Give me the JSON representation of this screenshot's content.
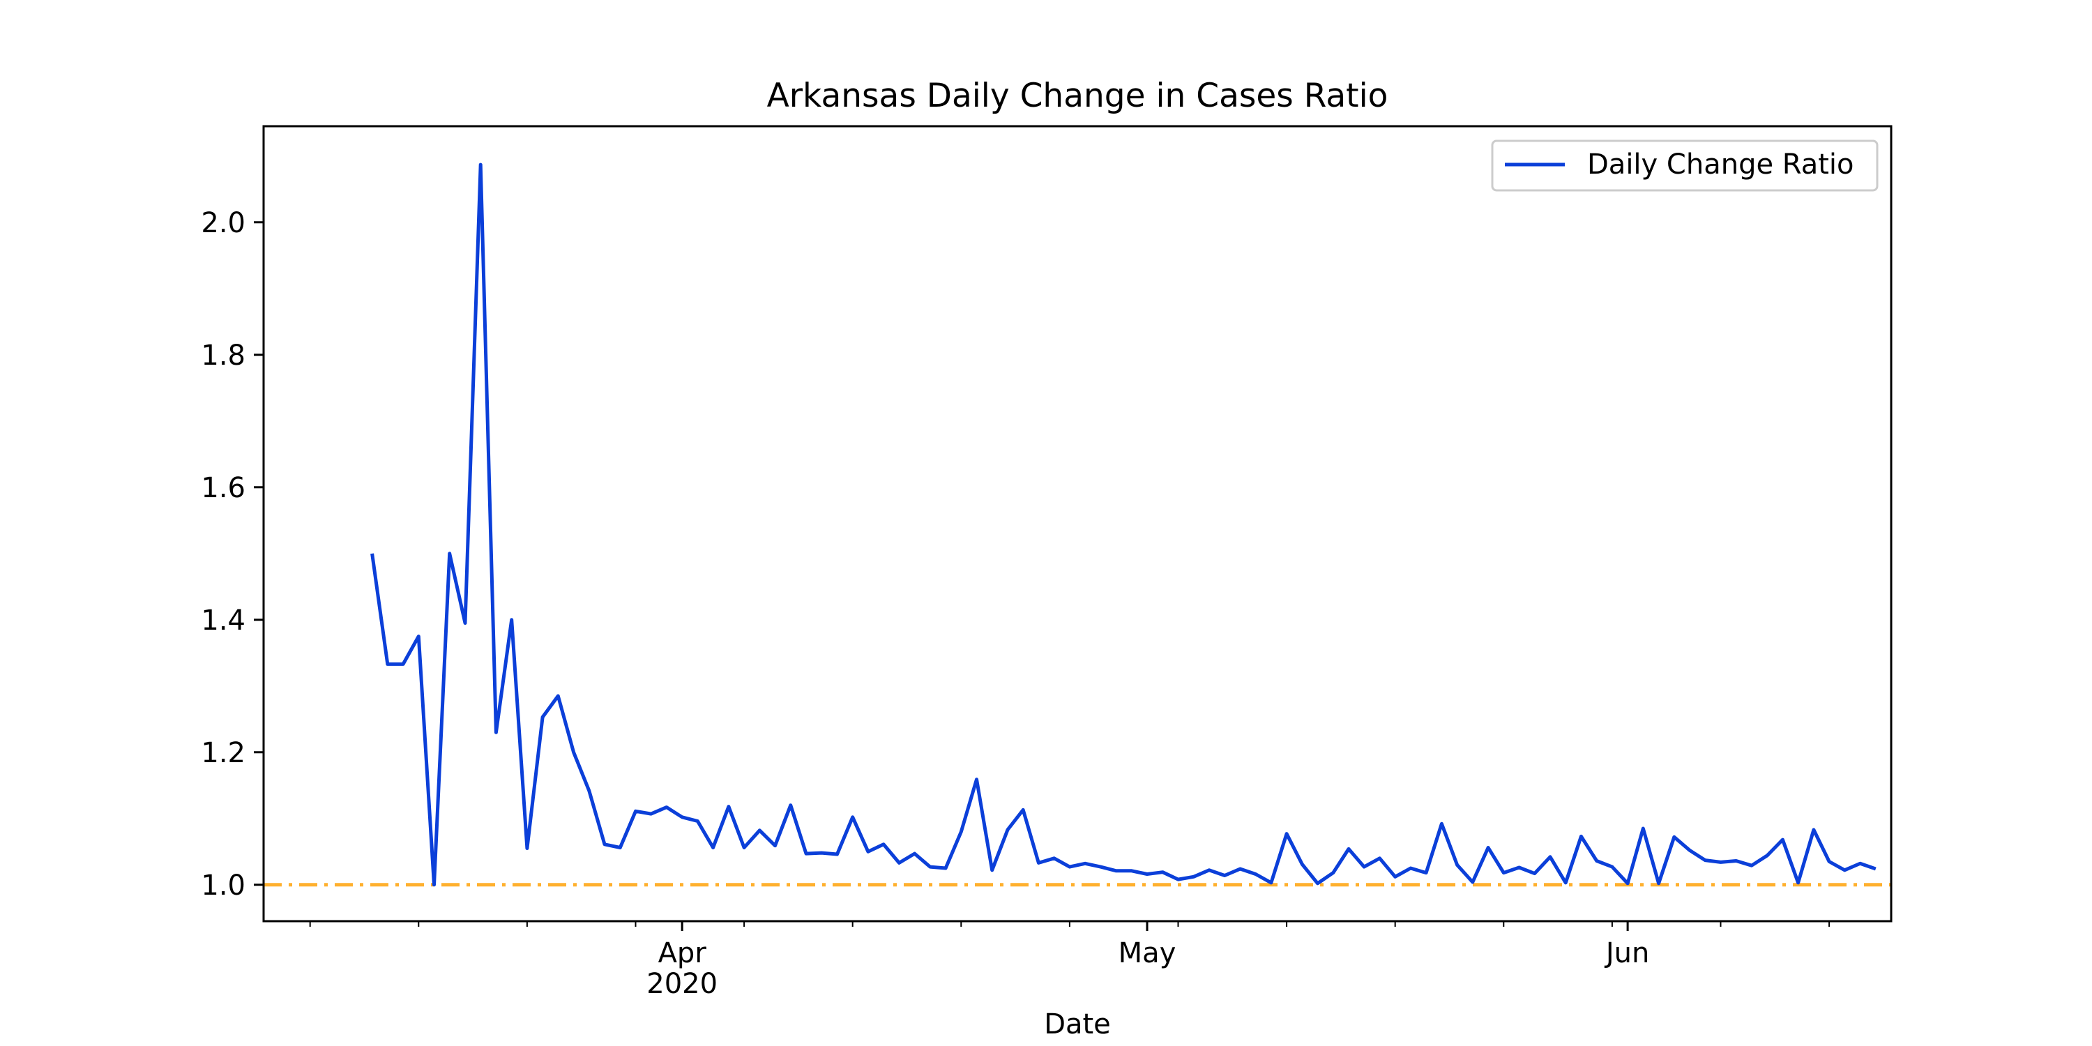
{
  "chart_data": {
    "type": "line",
    "title": "Arkansas Daily Change in Cases Ratio",
    "xlabel": "Date",
    "ylabel": "",
    "x_start": "2020-03-05",
    "x_end": "2020-06-18",
    "ylim": [
      0.945,
      2.145
    ],
    "yticks": [
      1.0,
      1.2,
      1.4,
      1.6,
      1.8,
      2.0
    ],
    "ytick_labels": [
      "1.0",
      "1.2",
      "1.4",
      "1.6",
      "1.8",
      "2.0"
    ],
    "xticks_major": [
      {
        "date": "2020-04-01",
        "label": "Apr",
        "sublabel": "2020"
      },
      {
        "date": "2020-05-01",
        "label": "May",
        "sublabel": ""
      },
      {
        "date": "2020-06-01",
        "label": "Jun",
        "sublabel": ""
      }
    ],
    "xticks_minor": [
      "2020-03-08",
      "2020-03-15",
      "2020-03-22",
      "2020-03-29",
      "2020-04-05",
      "2020-04-12",
      "2020-04-19",
      "2020-04-26",
      "2020-05-03",
      "2020-05-10",
      "2020-05-17",
      "2020-05-24",
      "2020-05-31",
      "2020-06-07",
      "2020-06-14"
    ],
    "grid": false,
    "legend": {
      "position": "top-right"
    },
    "reference_line": {
      "y": 1.0,
      "color": "#FFB02E",
      "style": "dash-dot"
    },
    "series": [
      {
        "name": "Daily Change Ratio",
        "color": "#0B3FD9",
        "x_start": "2020-03-12",
        "values": [
          1.5,
          1.333,
          1.333,
          1.375,
          1.0,
          1.5,
          1.395,
          2.087,
          1.23,
          1.4,
          1.055,
          1.253,
          1.285,
          1.2,
          1.142,
          1.061,
          1.056,
          1.111,
          1.107,
          1.117,
          1.102,
          1.096,
          1.056,
          1.118,
          1.056,
          1.082,
          1.059,
          1.12,
          1.047,
          1.048,
          1.046,
          1.102,
          1.05,
          1.061,
          1.033,
          1.047,
          1.027,
          1.025,
          1.08,
          1.159,
          1.022,
          1.083,
          1.113,
          1.033,
          1.04,
          1.027,
          1.032,
          1.027,
          1.021,
          1.021,
          1.016,
          1.019,
          1.008,
          1.012,
          1.022,
          1.014,
          1.024,
          1.016,
          1.003,
          1.077,
          1.031,
          1.002,
          1.018,
          1.054,
          1.027,
          1.04,
          1.012,
          1.025,
          1.018,
          1.092,
          1.03,
          1.004,
          1.056,
          1.018,
          1.026,
          1.017,
          1.042,
          1.003,
          1.073,
          1.036,
          1.027,
          1.002,
          1.085,
          1.002,
          1.072,
          1.052,
          1.037,
          1.034,
          1.036,
          1.029,
          1.044,
          1.068,
          1.003,
          1.083,
          1.035,
          1.022,
          1.032,
          1.024
        ]
      }
    ]
  }
}
